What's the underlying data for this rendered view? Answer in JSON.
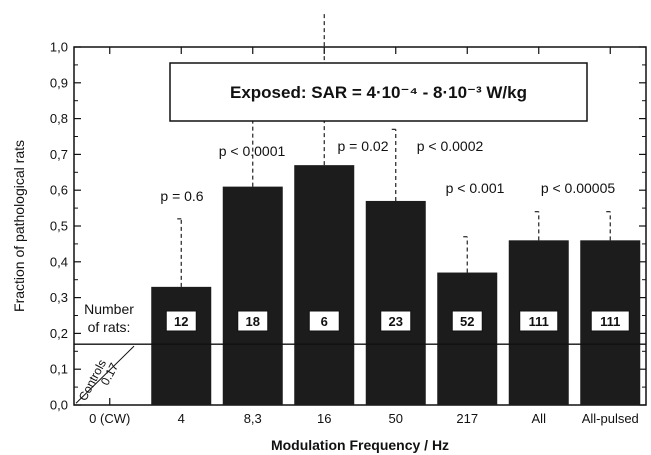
{
  "chart_data": {
    "type": "bar",
    "xlabel": "Modulation Frequency / Hz",
    "ylabel": "Fraction of pathological rats",
    "ylim": [
      0,
      1.0
    ],
    "yticks": [
      "0,0",
      "0,1",
      "0,2",
      "0,3",
      "0,4",
      "0,5",
      "0,6",
      "0,7",
      "0,8",
      "0,9",
      "1,0"
    ],
    "yticks_values": [
      0,
      0.1,
      0.2,
      0.3,
      0.4,
      0.5,
      0.6,
      0.7,
      0.8,
      0.9,
      1.0
    ],
    "categories": [
      "0 (CW)",
      "4",
      "8,3",
      "16",
      "50",
      "217",
      "All",
      "All-pulsed"
    ],
    "values": [
      null,
      0.33,
      0.61,
      0.67,
      0.57,
      0.37,
      0.46,
      0.46
    ],
    "error_upper": [
      null,
      0.52,
      0.81,
      1.14,
      0.77,
      0.47,
      0.54,
      0.54
    ],
    "p_values": [
      "",
      "p = 0.6",
      "p < 0.0001",
      "p = 0.02",
      "p < 0.0002",
      "p < 0.001",
      "p < 0.00005",
      ""
    ],
    "rat_counts": [
      "",
      "12",
      "18",
      "6",
      "23",
      "52",
      "111",
      "111"
    ],
    "number_of_rats_label": [
      "Number",
      "of rats:"
    ],
    "controls": {
      "value": 0.17,
      "label": "Controls",
      "value_label": "0.17"
    },
    "legend_box": "Exposed: SAR = 4·10⁻⁴ - 8·10⁻³  W/kg",
    "colors": {
      "bar": "#1c1c1c",
      "axis": "#111111",
      "background": "#ffffff"
    }
  }
}
